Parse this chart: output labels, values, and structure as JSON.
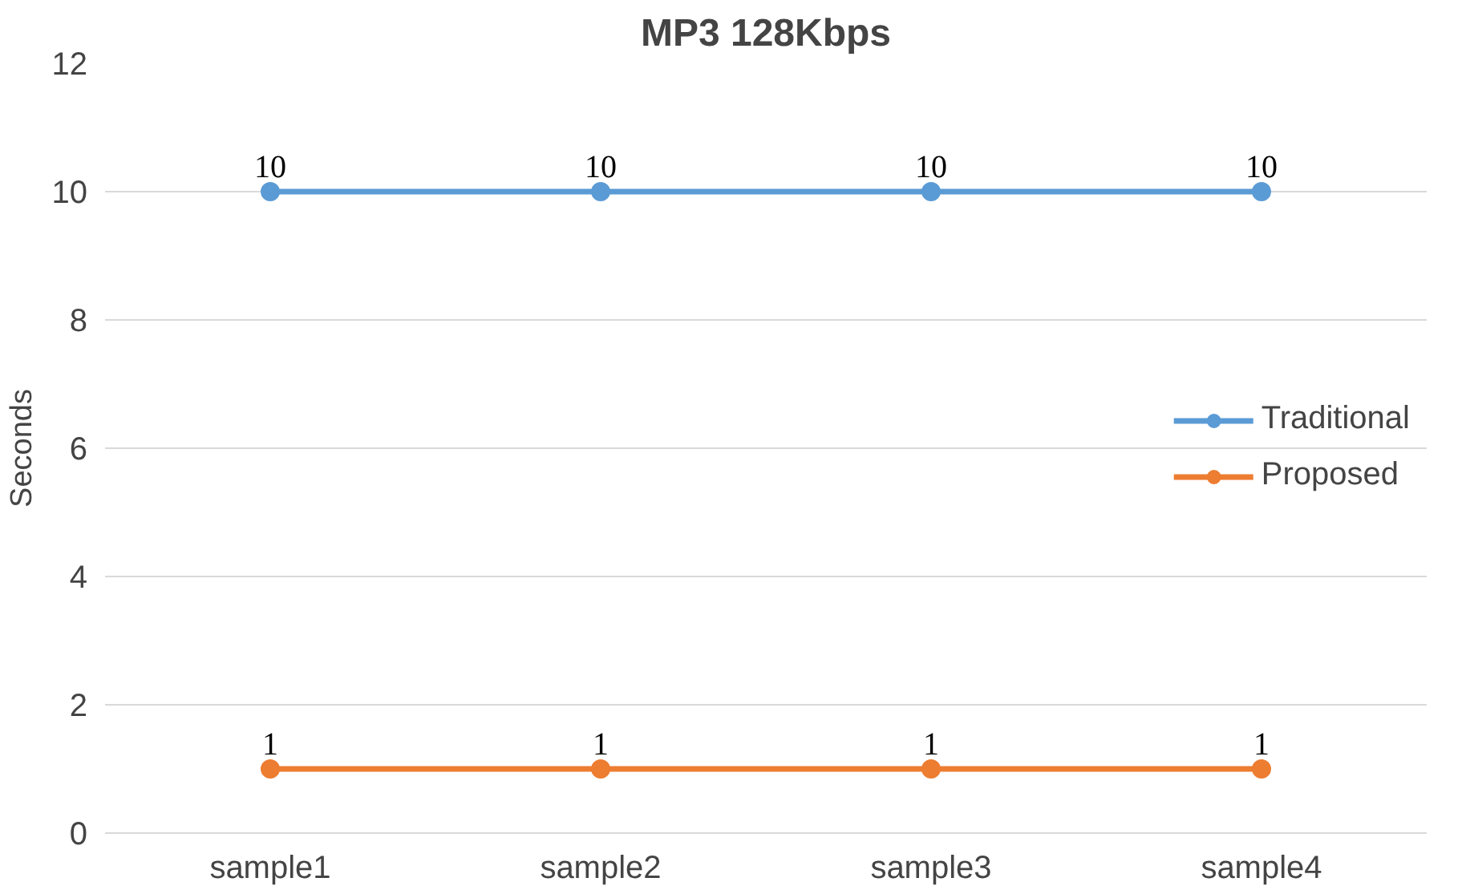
{
  "chart_data": {
    "type": "line",
    "title": "MP3 128Kbps",
    "ylabel": "Seconds",
    "categories": [
      "sample1",
      "sample2",
      "sample3",
      "sample4"
    ],
    "series": [
      {
        "name": "Traditional",
        "color": "#5b9bd5",
        "values": [
          10,
          10,
          10,
          10
        ]
      },
      {
        "name": "Proposed",
        "color": "#ed7d31",
        "values": [
          1,
          1,
          1,
          1
        ]
      }
    ],
    "ylim": [
      0,
      12
    ],
    "yticks": [
      0,
      2,
      4,
      6,
      8,
      10,
      12
    ],
    "grid": "y",
    "legend": "right",
    "marker": "circle",
    "line_style": "solid",
    "data_labels": true
  }
}
